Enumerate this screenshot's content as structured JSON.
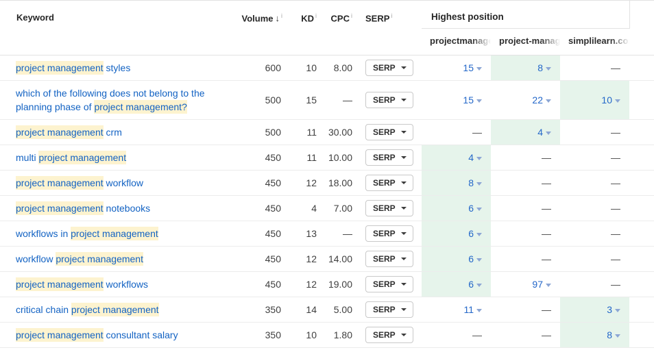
{
  "header": {
    "columns": {
      "keyword": "Keyword",
      "volume": "Volume",
      "kd": "KD",
      "cpc": "CPC",
      "serp": "SERP"
    },
    "sort_arrow": "↓",
    "info_mark": "i",
    "group": "Highest position",
    "targets": [
      {
        "label": "projectmanage"
      },
      {
        "label": "project-manage"
      },
      {
        "label": "simplilearn.com"
      }
    ]
  },
  "serp_button": {
    "label": "SERP"
  },
  "empty_cell": "—",
  "colors": {
    "link_blue": "#1262c3",
    "position_blue": "#2367c9",
    "keyword_highlight": "#fdf3cf",
    "best_position_bg": "#e6f4eb",
    "row_border": "#ececec"
  },
  "rows": [
    {
      "keyword": [
        {
          "t": "project management",
          "h": true
        },
        {
          "t": " styles",
          "h": false
        }
      ],
      "volume": "600",
      "kd": "10",
      "cpc": "8.00",
      "positions": [
        {
          "v": "15",
          "best": false
        },
        {
          "v": "8",
          "best": true
        },
        {
          "v": null,
          "best": false
        }
      ]
    },
    {
      "keyword": [
        {
          "t": "which of the following does not belong to the planning phase of ",
          "h": false
        },
        {
          "t": "project management?",
          "h": true
        }
      ],
      "volume": "500",
      "kd": "15",
      "cpc": null,
      "positions": [
        {
          "v": "15",
          "best": false
        },
        {
          "v": "22",
          "best": false
        },
        {
          "v": "10",
          "best": true
        }
      ]
    },
    {
      "keyword": [
        {
          "t": "project management",
          "h": true
        },
        {
          "t": " crm",
          "h": false
        }
      ],
      "volume": "500",
      "kd": "11",
      "cpc": "30.00",
      "positions": [
        {
          "v": null,
          "best": false
        },
        {
          "v": "4",
          "best": true
        },
        {
          "v": null,
          "best": false
        }
      ]
    },
    {
      "keyword": [
        {
          "t": "multi ",
          "h": false
        },
        {
          "t": "project management",
          "h": true
        }
      ],
      "volume": "450",
      "kd": "11",
      "cpc": "10.00",
      "positions": [
        {
          "v": "4",
          "best": true
        },
        {
          "v": null,
          "best": false
        },
        {
          "v": null,
          "best": false
        }
      ]
    },
    {
      "keyword": [
        {
          "t": "project management",
          "h": true
        },
        {
          "t": " workflow",
          "h": false
        }
      ],
      "volume": "450",
      "kd": "12",
      "cpc": "18.00",
      "positions": [
        {
          "v": "8",
          "best": true
        },
        {
          "v": null,
          "best": false
        },
        {
          "v": null,
          "best": false
        }
      ]
    },
    {
      "keyword": [
        {
          "t": "project management",
          "h": true
        },
        {
          "t": " notebooks",
          "h": false
        }
      ],
      "volume": "450",
      "kd": "4",
      "cpc": "7.00",
      "positions": [
        {
          "v": "6",
          "best": true
        },
        {
          "v": null,
          "best": false
        },
        {
          "v": null,
          "best": false
        }
      ]
    },
    {
      "keyword": [
        {
          "t": "workflows in ",
          "h": false
        },
        {
          "t": "project management",
          "h": true
        }
      ],
      "volume": "450",
      "kd": "13",
      "cpc": null,
      "positions": [
        {
          "v": "6",
          "best": true
        },
        {
          "v": null,
          "best": false
        },
        {
          "v": null,
          "best": false
        }
      ]
    },
    {
      "keyword": [
        {
          "t": "workflow ",
          "h": false
        },
        {
          "t": "project management",
          "h": true
        }
      ],
      "volume": "450",
      "kd": "12",
      "cpc": "14.00",
      "positions": [
        {
          "v": "6",
          "best": true
        },
        {
          "v": null,
          "best": false
        },
        {
          "v": null,
          "best": false
        }
      ]
    },
    {
      "keyword": [
        {
          "t": "project management",
          "h": true
        },
        {
          "t": " workflows",
          "h": false
        }
      ],
      "volume": "450",
      "kd": "12",
      "cpc": "19.00",
      "positions": [
        {
          "v": "6",
          "best": true
        },
        {
          "v": "97",
          "best": false
        },
        {
          "v": null,
          "best": false
        }
      ]
    },
    {
      "keyword": [
        {
          "t": "critical chain ",
          "h": false
        },
        {
          "t": "project management",
          "h": true
        }
      ],
      "volume": "350",
      "kd": "14",
      "cpc": "5.00",
      "positions": [
        {
          "v": "11",
          "best": false
        },
        {
          "v": null,
          "best": false
        },
        {
          "v": "3",
          "best": true
        }
      ]
    },
    {
      "keyword": [
        {
          "t": "project management",
          "h": true
        },
        {
          "t": " consultant salary",
          "h": false
        }
      ],
      "volume": "350",
      "kd": "10",
      "cpc": "1.80",
      "positions": [
        {
          "v": null,
          "best": false
        },
        {
          "v": null,
          "best": false
        },
        {
          "v": "8",
          "best": true
        }
      ]
    }
  ]
}
